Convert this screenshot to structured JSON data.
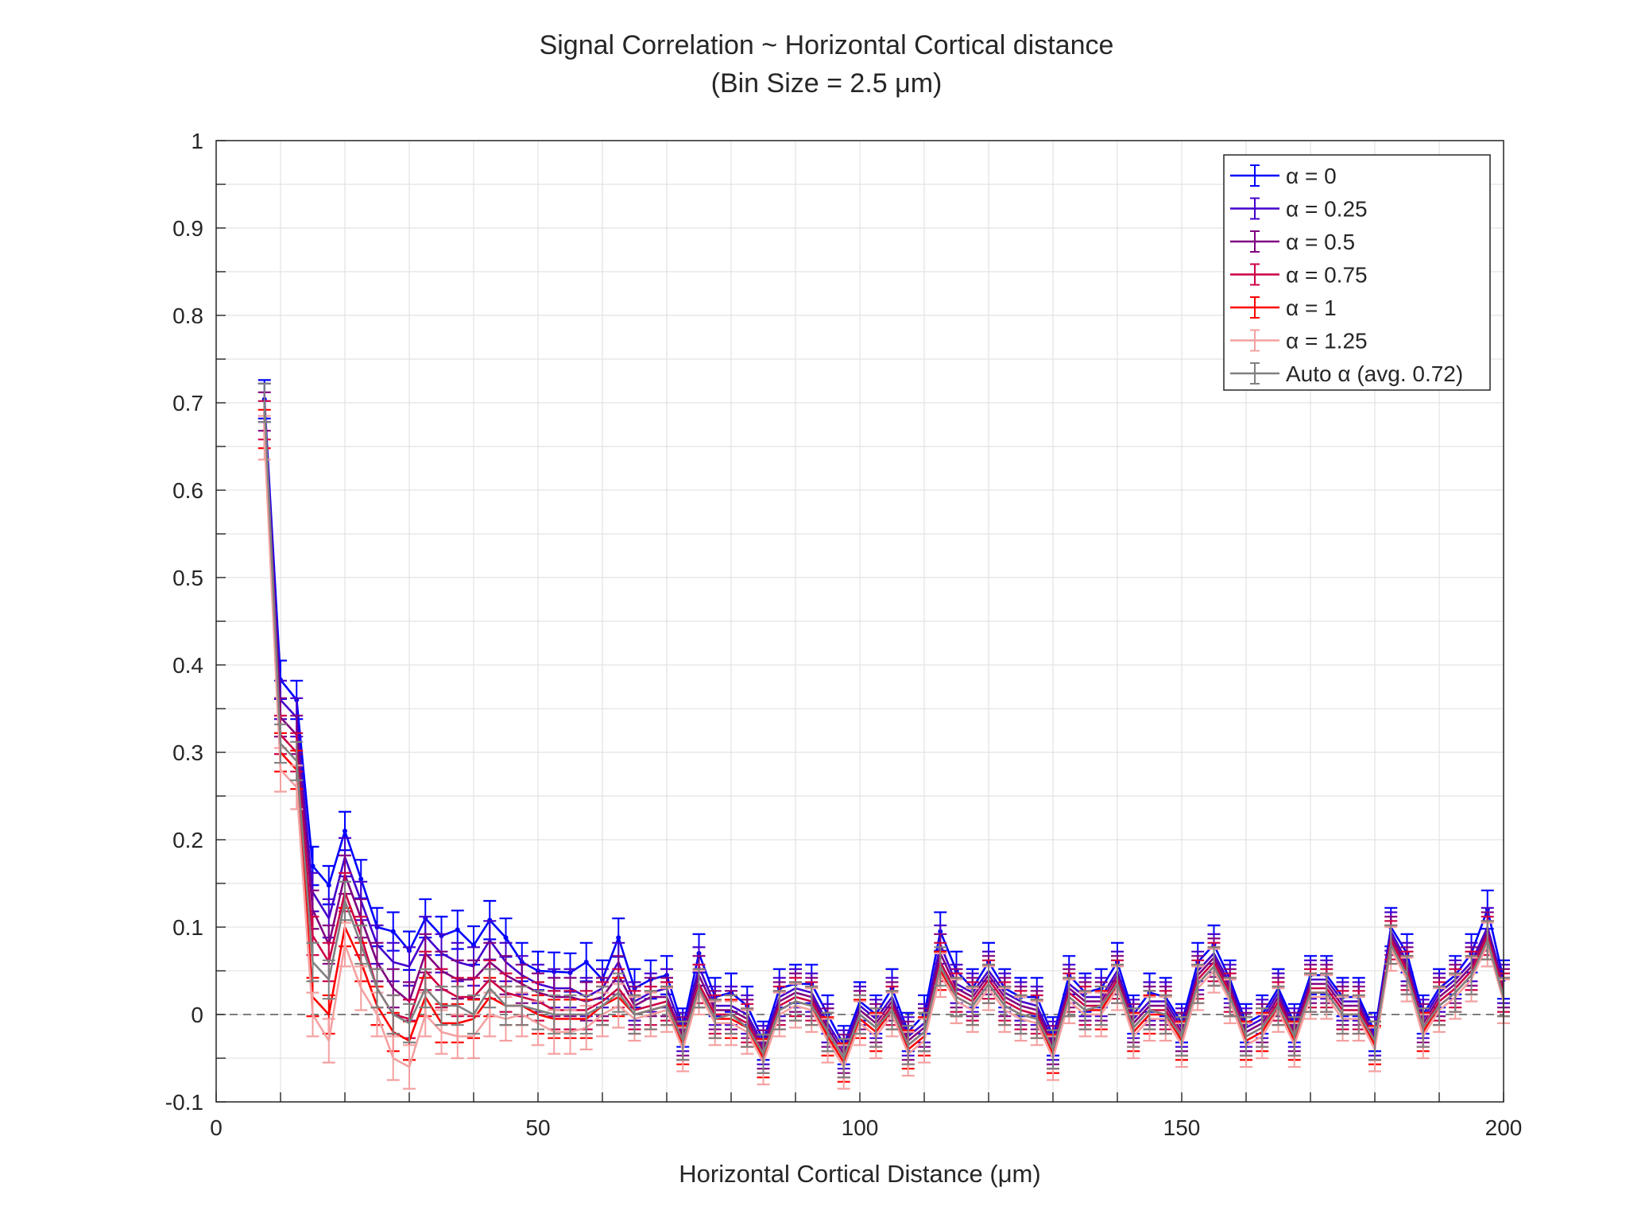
{
  "chart_data": {
    "type": "line",
    "title": "Signal Correlation ~ Horizontal Cortical distance",
    "subtitle": "(Bin Size = 2.5 μm)",
    "xlabel": "Horizontal Cortical Distance (μm)",
    "ylabel": "",
    "xlim": [
      0,
      200
    ],
    "ylim": [
      -0.1,
      1
    ],
    "xticks": [
      "0",
      "50",
      "100",
      "150",
      "200"
    ],
    "yticks": [
      "-0.1",
      "0",
      "0.1",
      "0.2",
      "0.3",
      "0.4",
      "0.5",
      "0.6",
      "0.7",
      "0.8",
      "0.9",
      "1"
    ],
    "grid": true,
    "zero_line": true,
    "legend_position": "top-right",
    "x": [
      7.5,
      10,
      12.5,
      15,
      17.5,
      20,
      22.5,
      25,
      27.5,
      30,
      32.5,
      35,
      37.5,
      40,
      42.5,
      45,
      47.5,
      50,
      52.5,
      55,
      57.5,
      60,
      62.5,
      65,
      67.5,
      70,
      72.5,
      75,
      77.5,
      80,
      82.5,
      85,
      87.5,
      90,
      92.5,
      95,
      97.5,
      100,
      102.5,
      105,
      107.5,
      110,
      112.5,
      115,
      117.5,
      120,
      122.5,
      125,
      127.5,
      130,
      132.5,
      135,
      137.5,
      140,
      142.5,
      145,
      147.5,
      150,
      152.5,
      155,
      157.5,
      160,
      162.5,
      165,
      167.5,
      170,
      172.5,
      175,
      177.5,
      180,
      182.5,
      185,
      187.5,
      190,
      192.5,
      195,
      197.5,
      200
    ],
    "series": [
      {
        "name": "α = 0",
        "color": "#0000ff",
        "err": 0.022,
        "values": [
          0.704,
          0.383,
          0.36,
          0.17,
          0.148,
          0.21,
          0.155,
          0.1,
          0.095,
          0.073,
          0.11,
          0.09,
          0.097,
          0.079,
          0.108,
          0.088,
          0.06,
          0.05,
          0.049,
          0.048,
          0.06,
          0.04,
          0.088,
          0.03,
          0.04,
          0.045,
          -0.015,
          0.07,
          0.02,
          0.025,
          0.01,
          -0.03,
          0.03,
          0.035,
          0.035,
          0.0,
          -0.035,
          0.015,
          0.0,
          0.03,
          -0.02,
          0.0,
          0.095,
          0.05,
          0.03,
          0.06,
          0.03,
          0.02,
          0.02,
          -0.025,
          0.045,
          0.025,
          0.03,
          0.06,
          0.0,
          0.025,
          0.02,
          -0.01,
          0.06,
          0.08,
          0.04,
          -0.01,
          0.0,
          0.03,
          -0.01,
          0.045,
          0.045,
          0.02,
          0.02,
          -0.02,
          0.1,
          0.07,
          0.0,
          0.03,
          0.045,
          0.07,
          0.12,
          0.04
        ]
      },
      {
        "name": "α = 0.25",
        "color": "#4400cc",
        "err": 0.022,
        "values": [
          0.7,
          0.36,
          0.34,
          0.14,
          0.11,
          0.18,
          0.13,
          0.08,
          0.06,
          0.055,
          0.09,
          0.07,
          0.06,
          0.055,
          0.085,
          0.06,
          0.045,
          0.035,
          0.03,
          0.03,
          0.02,
          0.03,
          0.06,
          0.015,
          0.025,
          0.03,
          -0.02,
          0.055,
          0.01,
          0.01,
          0.0,
          -0.035,
          0.02,
          0.03,
          0.025,
          -0.01,
          -0.04,
          0.01,
          -0.005,
          0.02,
          -0.025,
          -0.01,
          0.08,
          0.035,
          0.025,
          0.05,
          0.025,
          0.015,
          0.01,
          -0.03,
          0.035,
          0.02,
          0.02,
          0.05,
          -0.005,
          0.015,
          0.015,
          -0.015,
          0.05,
          0.07,
          0.035,
          -0.015,
          -0.005,
          0.025,
          -0.015,
          0.04,
          0.04,
          0.015,
          0.015,
          -0.025,
          0.095,
          0.06,
          -0.005,
          0.025,
          0.04,
          0.06,
          0.1,
          0.035
        ]
      },
      {
        "name": "α = 0.5",
        "color": "#800080",
        "err": 0.022,
        "values": [
          0.69,
          0.34,
          0.32,
          0.12,
          0.08,
          0.16,
          0.11,
          0.06,
          0.03,
          0.015,
          0.07,
          0.05,
          0.04,
          0.04,
          0.06,
          0.045,
          0.035,
          0.025,
          0.02,
          0.02,
          0.015,
          0.02,
          0.045,
          0.01,
          0.02,
          0.02,
          -0.025,
          0.045,
          0.005,
          0.005,
          -0.005,
          -0.04,
          0.015,
          0.025,
          0.02,
          -0.015,
          -0.045,
          0.005,
          -0.01,
          0.015,
          -0.03,
          -0.015,
          0.07,
          0.03,
          0.02,
          0.045,
          0.02,
          0.01,
          0.005,
          -0.035,
          0.03,
          0.015,
          0.015,
          0.045,
          -0.01,
          0.01,
          0.01,
          -0.02,
          0.045,
          0.065,
          0.03,
          -0.02,
          -0.01,
          0.02,
          -0.02,
          0.035,
          0.035,
          0.01,
          0.01,
          -0.03,
          0.09,
          0.055,
          -0.01,
          0.02,
          0.035,
          0.055,
          0.095,
          0.03
        ]
      },
      {
        "name": "α = 0.75",
        "color": "#cc0044",
        "err": 0.022,
        "values": [
          0.68,
          0.32,
          0.3,
          0.09,
          0.06,
          0.14,
          0.09,
          0.03,
          0.0,
          -0.005,
          0.05,
          0.03,
          0.02,
          0.02,
          0.04,
          0.025,
          0.02,
          0.015,
          0.005,
          0.005,
          0.005,
          0.015,
          0.03,
          0.005,
          0.01,
          0.015,
          -0.03,
          0.035,
          0.0,
          0.0,
          -0.01,
          -0.045,
          0.01,
          0.02,
          0.015,
          -0.02,
          -0.05,
          0.0,
          -0.015,
          0.01,
          -0.035,
          -0.02,
          0.06,
          0.025,
          0.015,
          0.04,
          0.015,
          0.005,
          0.0,
          -0.04,
          0.025,
          0.01,
          0.01,
          0.04,
          -0.015,
          0.005,
          0.005,
          -0.025,
          0.04,
          0.06,
          0.025,
          -0.025,
          -0.015,
          0.015,
          -0.025,
          0.03,
          0.03,
          0.005,
          0.005,
          -0.03,
          0.085,
          0.05,
          -0.015,
          0.015,
          0.03,
          0.05,
          0.09,
          0.025
        ]
      },
      {
        "name": "α = 1",
        "color": "#ff0000",
        "err": 0.022,
        "values": [
          0.67,
          0.3,
          0.28,
          0.02,
          0.0,
          0.1,
          0.06,
          0.01,
          -0.02,
          -0.03,
          0.02,
          -0.01,
          -0.01,
          -0.005,
          0.02,
          0.01,
          0.01,
          0.0,
          -0.005,
          -0.005,
          -0.005,
          0.01,
          0.02,
          0.0,
          0.005,
          0.01,
          -0.035,
          0.03,
          -0.005,
          -0.005,
          -0.015,
          -0.05,
          0.005,
          0.015,
          0.01,
          -0.025,
          -0.055,
          -0.005,
          -0.02,
          0.005,
          -0.04,
          -0.025,
          0.05,
          0.02,
          0.01,
          0.035,
          0.01,
          0.0,
          -0.005,
          -0.045,
          0.02,
          0.005,
          0.005,
          0.035,
          -0.02,
          0.0,
          0.0,
          -0.03,
          0.035,
          0.055,
          0.02,
          -0.03,
          -0.02,
          0.01,
          -0.03,
          0.025,
          0.025,
          0.0,
          0.0,
          -0.035,
          0.08,
          0.045,
          -0.02,
          0.01,
          0.025,
          0.045,
          0.085,
          0.02
        ]
      },
      {
        "name": "α = 1.25",
        "color": "#f4a0a0",
        "err": 0.025,
        "values": [
          0.66,
          0.28,
          0.26,
          0.0,
          -0.03,
          0.08,
          0.03,
          0.0,
          -0.05,
          -0.06,
          0.0,
          -0.02,
          -0.025,
          -0.025,
          0.0,
          -0.005,
          0.0,
          -0.01,
          -0.02,
          -0.02,
          -0.015,
          0.0,
          0.01,
          -0.005,
          0.0,
          0.005,
          -0.04,
          0.025,
          -0.01,
          -0.01,
          -0.02,
          -0.055,
          0.0,
          0.01,
          0.005,
          -0.03,
          -0.06,
          -0.01,
          -0.025,
          0.0,
          -0.045,
          -0.03,
          0.045,
          0.015,
          0.005,
          0.03,
          0.005,
          -0.005,
          -0.01,
          -0.05,
          0.015,
          0.0,
          0.0,
          0.03,
          -0.025,
          -0.005,
          -0.005,
          -0.035,
          0.03,
          0.05,
          0.015,
          -0.035,
          -0.025,
          0.005,
          -0.035,
          0.02,
          0.02,
          -0.005,
          -0.005,
          -0.04,
          0.075,
          0.04,
          -0.025,
          0.005,
          0.02,
          0.04,
          0.08,
          0.015
        ]
      },
      {
        "name": "Auto α (avg. 0.72)",
        "color": "#808080",
        "err": 0.022,
        "values": [
          0.7,
          0.31,
          0.29,
          0.06,
          0.04,
          0.13,
          0.08,
          0.03,
          0.0,
          -0.01,
          0.03,
          0.01,
          0.01,
          0.0,
          0.03,
          0.01,
          0.01,
          0.005,
          0.0,
          0.0,
          0.0,
          0.01,
          0.025,
          0.0,
          0.005,
          0.01,
          -0.03,
          0.03,
          -0.005,
          0.0,
          -0.015,
          -0.045,
          0.005,
          0.015,
          0.01,
          -0.02,
          -0.05,
          0.0,
          -0.015,
          0.005,
          -0.035,
          -0.02,
          0.055,
          0.02,
          0.01,
          0.035,
          0.01,
          0.0,
          -0.005,
          -0.04,
          0.02,
          0.005,
          0.01,
          0.035,
          -0.015,
          0.005,
          0.0,
          -0.025,
          0.035,
          0.055,
          0.02,
          -0.025,
          -0.015,
          0.01,
          -0.025,
          0.025,
          0.025,
          0.0,
          0.0,
          -0.03,
          0.08,
          0.045,
          -0.015,
          0.01,
          0.025,
          0.045,
          0.085,
          0.02
        ]
      }
    ]
  }
}
